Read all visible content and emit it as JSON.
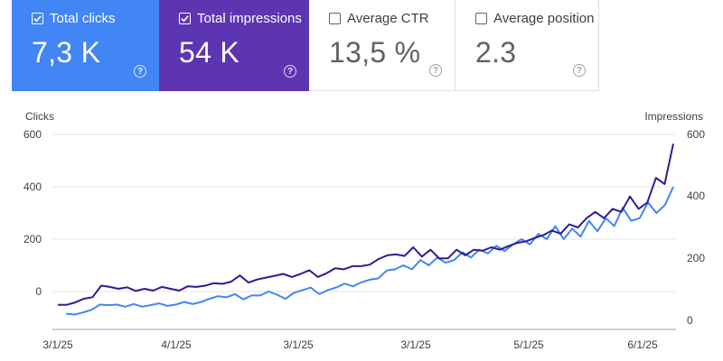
{
  "metrics": {
    "clicks": {
      "label": "Total clicks",
      "value": "7,3 K",
      "checked": true,
      "color": "#4285f4",
      "help_icon": "help-circle-icon"
    },
    "impressions": {
      "label": "Total impressions",
      "value": "54 K",
      "checked": true,
      "color": "#5e35b1",
      "help_icon": "help-circle-icon"
    },
    "ctr": {
      "label": "Average CTR",
      "value": "13,5 %",
      "checked": false,
      "help_icon": "help-circle-icon"
    },
    "position": {
      "label": "Average position",
      "value": "2.3",
      "checked": false,
      "help_icon": "help-circle-icon"
    }
  },
  "chart_data": {
    "type": "line",
    "y_left": {
      "label": "Clicks",
      "ticks": [
        "600",
        "400",
        "200",
        "0"
      ],
      "range": [
        -100,
        600
      ]
    },
    "y_right": {
      "label": "Impressions",
      "ticks": [
        "600",
        "400",
        "200",
        "0"
      ],
      "range": [
        0,
        600
      ]
    },
    "x_ticks": [
      "3/1/25",
      "4/1/25",
      "3/1/25",
      "3/1/25",
      "5/1/25",
      "6/1/25"
    ],
    "grid": true,
    "series": [
      {
        "axis": "left",
        "color": "#4285f4",
        "values": [
          -85,
          -88,
          -80,
          -70,
          -50,
          -52,
          -50,
          -58,
          -48,
          -58,
          -52,
          -45,
          -55,
          -50,
          -40,
          -48,
          -40,
          -28,
          -18,
          -22,
          -10,
          -30,
          -15,
          -15,
          0,
          -12,
          -28,
          -5,
          5,
          15,
          -10,
          5,
          15,
          30,
          20,
          35,
          45,
          50,
          80,
          85,
          100,
          85,
          120,
          100,
          130,
          110,
          120,
          150,
          130,
          160,
          145,
          175,
          155,
          180,
          200,
          180,
          220,
          200,
          250,
          200,
          240,
          210,
          270,
          230,
          280,
          250,
          320,
          270,
          280,
          340,
          300,
          330,
          400
        ],
        "x_index_start": 1
      },
      {
        "axis": "right",
        "color": "#311b92",
        "values": [
          50,
          50,
          58,
          70,
          75,
          112,
          108,
          102,
          107,
          95,
          102,
          96,
          108,
          102,
          96,
          110,
          108,
          112,
          120,
          118,
          125,
          145,
          122,
          132,
          138,
          144,
          150,
          140,
          150,
          162,
          140,
          152,
          168,
          165,
          175,
          175,
          180,
          198,
          210,
          213,
          208,
          236,
          206,
          228,
          200,
          200,
          228,
          210,
          228,
          225,
          236,
          228,
          240,
          250,
          255,
          266,
          275,
          290,
          280,
          310,
          300,
          330,
          350,
          330,
          360,
          350,
          400,
          360,
          380,
          460,
          440,
          570
        ]
      }
    ]
  }
}
